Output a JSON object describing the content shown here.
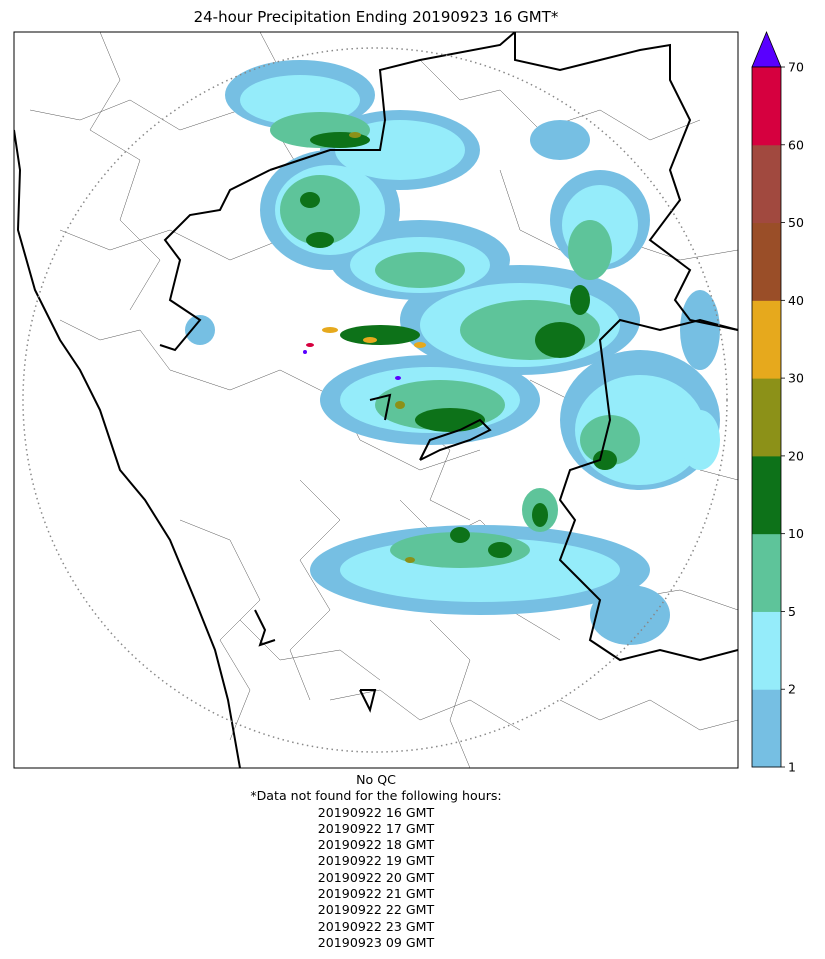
{
  "title": "24-hour Precipitation Ending 20190923 16 GMT*",
  "colorbar": {
    "ticks": [
      "1",
      "2",
      "5",
      "10",
      "20",
      "30",
      "40",
      "50",
      "60",
      "70"
    ],
    "colors": [
      "#76bfe3",
      "#95ecfa",
      "#5ec49a",
      "#0d7219",
      "#8c9118",
      "#e6a91d",
      "#9a4e28",
      "#a1493f",
      "#d6003f"
    ],
    "extend_max_color": "#5900ff"
  },
  "map": {
    "range_ring": true,
    "borders": "state and district boundaries"
  },
  "notes": {
    "qc": "No QC",
    "missing_header": "*Data not found for the following hours:",
    "missing_hours": [
      "20190922 16 GMT",
      "20190922 17 GMT",
      "20190922 18 GMT",
      "20190922 19 GMT",
      "20190922 20 GMT",
      "20190922 21 GMT",
      "20190922 22 GMT",
      "20190922 23 GMT",
      "20190923 09 GMT"
    ]
  }
}
